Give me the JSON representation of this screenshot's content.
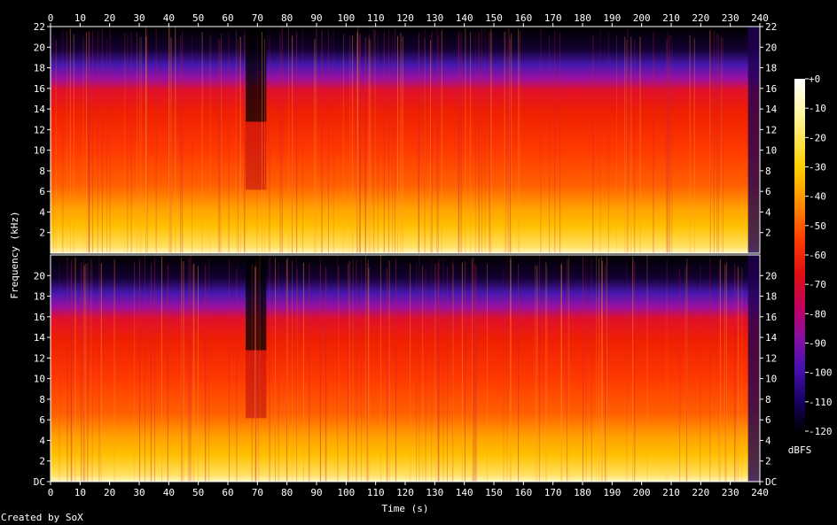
{
  "chart_data": {
    "type": "heatmap",
    "title": "",
    "xlabel": "Time (s)",
    "ylabel": "Frequency (kHz)",
    "xlim": [
      0,
      240
    ],
    "ylim": [
      0,
      22
    ],
    "x_ticks": [
      0,
      10,
      20,
      30,
      40,
      50,
      60,
      70,
      80,
      90,
      100,
      110,
      120,
      130,
      140,
      150,
      160,
      170,
      180,
      190,
      200,
      210,
      220,
      230,
      240
    ],
    "y_ticks_top": [
      "2",
      "4",
      "6",
      "8",
      "10",
      "12",
      "14",
      "16",
      "18",
      "20",
      "22"
    ],
    "y_ticks_bottom": [
      "DC",
      "2",
      "4",
      "6",
      "8",
      "10",
      "12",
      "14",
      "16",
      "18",
      "20"
    ],
    "channels": 2,
    "colorbar": {
      "label": "dBFS",
      "ticks": [
        "+0",
        "-10",
        "-20",
        "-30",
        "-40",
        "-50",
        "-60",
        "-70",
        "-80",
        "-90",
        "-100",
        "-110",
        "-120"
      ],
      "range": [
        0,
        -120
      ]
    },
    "colors": {
      "background": "#000000",
      "axis": "#ffffff",
      "stops": [
        "#000000",
        "#1a0040",
        "#3a0b8a",
        "#7a1090",
        "#b0105a",
        "#d81a1a",
        "#ff5a00",
        "#ff9a00",
        "#ffd400",
        "#fff8c0",
        "#ffffff"
      ]
    }
  },
  "credit": "Created by SoX"
}
